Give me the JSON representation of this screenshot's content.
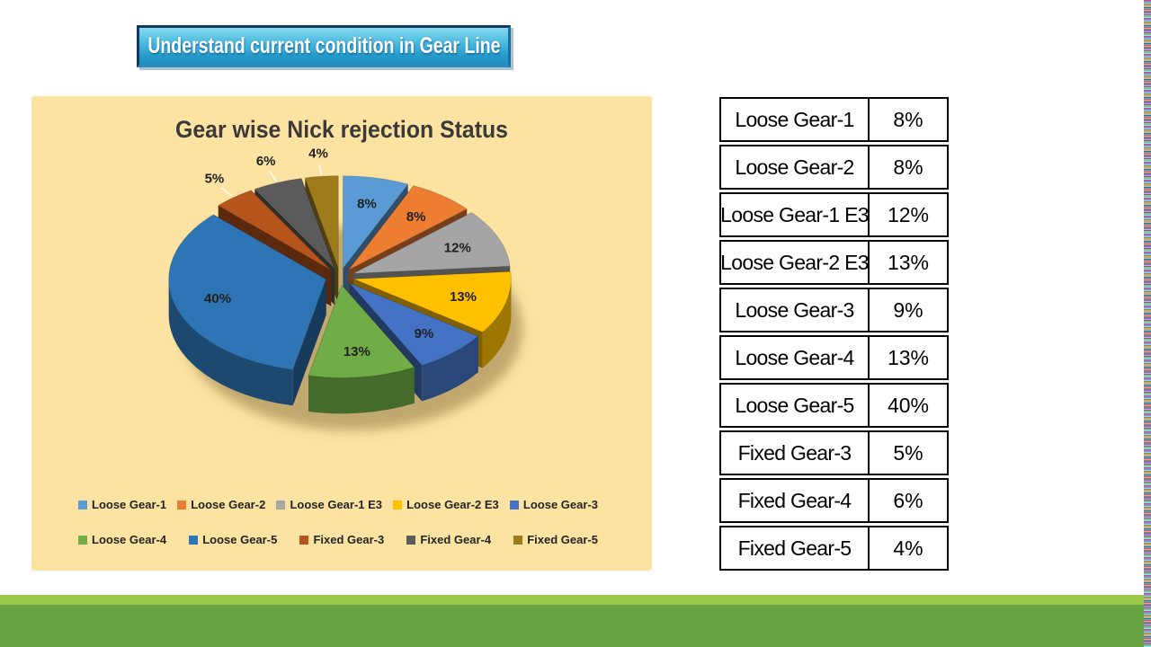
{
  "banner": {
    "text": "Understand current condition in Gear Line"
  },
  "chart_data": {
    "type": "pie",
    "style": "3d-exploded",
    "title": "Gear wise Nick rejection Status",
    "labels": [
      "Loose Gear-1",
      "Loose Gear-2",
      "Loose Gear-1 E3",
      "Loose Gear-2 E3",
      "Loose Gear-3",
      "Loose Gear-4",
      "Loose Gear-5",
      "Fixed Gear-3",
      "Fixed Gear-4",
      "Fixed Gear-5"
    ],
    "values": [
      8,
      8,
      12,
      13,
      9,
      13,
      40,
      5,
      6,
      4
    ],
    "value_labels": [
      "8%",
      "8%",
      "12%",
      "13%",
      "9%",
      "13%",
      "40%",
      "5%",
      "6%",
      "4%"
    ],
    "colors": [
      "#5B9BD5",
      "#ED7D31",
      "#A5A5A5",
      "#FFC000",
      "#4472C4",
      "#70AD47",
      "#2E75B6",
      "#B5541C",
      "#5B5B5B",
      "#9E7B1B"
    ],
    "legend_position": "bottom",
    "legend_rows": [
      5,
      5
    ],
    "background": "#FCE3A2"
  },
  "table": {
    "rows": [
      {
        "label": "Loose Gear-1",
        "value": "8%"
      },
      {
        "label": "Loose Gear-2",
        "value": "8%"
      },
      {
        "label": "Loose Gear-1 E3",
        "value": "12%"
      },
      {
        "label": "Loose Gear-2 E3",
        "value": "13%"
      },
      {
        "label": "Loose Gear-3",
        "value": "9%"
      },
      {
        "label": "Loose Gear-4",
        "value": "13%"
      },
      {
        "label": "Loose Gear-5",
        "value": "40%"
      },
      {
        "label": "Fixed Gear-3",
        "value": "5%"
      },
      {
        "label": "Fixed Gear-4",
        "value": "6%"
      },
      {
        "label": "Fixed Gear-5",
        "value": "4%"
      }
    ]
  },
  "footer": {
    "light_color": "#9DC94B",
    "dark_color": "#67A243"
  }
}
